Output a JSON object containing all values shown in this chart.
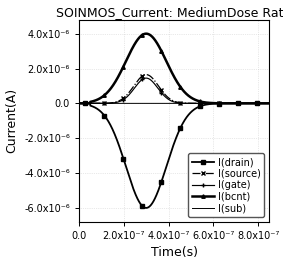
{
  "title": "SOINMOS_Current: MediumDose Rate",
  "xlabel": "Time(s)",
  "ylabel": "Current(A)",
  "xlim": [
    0,
    8.5e-07
  ],
  "ylim": [
    -6.8e-06,
    4.8e-06
  ],
  "xticks": [
    0.0,
    2e-07,
    4e-07,
    6e-07,
    8e-07
  ],
  "yticks": [
    -6e-06,
    -4e-06,
    -2e-06,
    0.0,
    2e-06,
    4e-06
  ],
  "xtick_labels": [
    "0.0",
    "2.0x10⁻⁷",
    "4.0x10⁻⁷",
    "6.0x10⁻⁷",
    "8.0x10⁻⁷"
  ],
  "ytick_labels": [
    "-6.0x10⁻⁶",
    "-4.0x10⁻⁶",
    "-2.0x10⁻⁶",
    "0.0",
    "2.0x10⁻⁶",
    "4.0x10⁻⁶"
  ],
  "peak_time": 3e-07,
  "drain_peak": -6e-06,
  "body_peak": 4e-06,
  "source_peak": 1.65e-06,
  "gate_peak": 1.45e-06,
  "legend_entries": [
    "I(drain)",
    "I(source)",
    "I(gate)",
    "I(bcnt)",
    "I(sub)"
  ],
  "line_color": "#000000",
  "bg_color": "#ffffff",
  "grid_color": "#c8c8c8",
  "title_fontsize": 9,
  "label_fontsize": 9,
  "tick_fontsize": 7,
  "legend_fontsize": 7
}
